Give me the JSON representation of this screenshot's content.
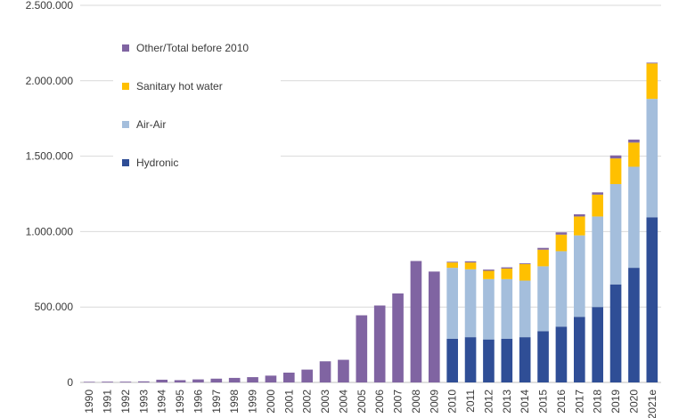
{
  "chart_data": {
    "type": "bar",
    "stacked": true,
    "grid": "horizontal",
    "legend_position": "top-left",
    "ylim": [
      0,
      2500000
    ],
    "yticks": [
      0,
      500000,
      1000000,
      1500000,
      2000000,
      2500000
    ],
    "ytick_labels": [
      "0",
      "500.000",
      "1.000.000",
      "1.500.000",
      "2.000.000",
      "2.500.000"
    ],
    "categories": [
      "1990",
      "1991",
      "1992",
      "1993",
      "1994",
      "1995",
      "1996",
      "1997",
      "1998",
      "1999",
      "2000",
      "2001",
      "2002",
      "2003",
      "2004",
      "2005",
      "2006",
      "2007",
      "2008",
      "2009",
      "2010",
      "2011",
      "2012",
      "2013",
      "2014",
      "2015",
      "2016",
      "2017",
      "2018",
      "2019",
      "2020",
      "2021e"
    ],
    "series": [
      {
        "name": "Hydronic",
        "color": "#2f4e96",
        "values": [
          0,
          0,
          0,
          0,
          0,
          0,
          0,
          0,
          0,
          0,
          0,
          0,
          0,
          0,
          0,
          0,
          0,
          0,
          0,
          0,
          290000,
          300000,
          285000,
          290000,
          300000,
          340000,
          370000,
          435000,
          500000,
          650000,
          760000,
          1095000
        ]
      },
      {
        "name": "Air-Air",
        "color": "#a4bedc",
        "values": [
          0,
          0,
          0,
          0,
          0,
          0,
          0,
          0,
          0,
          0,
          0,
          0,
          0,
          0,
          0,
          0,
          0,
          0,
          0,
          0,
          470000,
          450000,
          400000,
          395000,
          375000,
          430000,
          500000,
          540000,
          600000,
          665000,
          670000,
          785000
        ]
      },
      {
        "name": "Sanitary hot water",
        "color": "#ffc000",
        "values": [
          0,
          0,
          0,
          0,
          0,
          0,
          0,
          0,
          0,
          0,
          0,
          0,
          0,
          0,
          0,
          0,
          0,
          0,
          0,
          0,
          35000,
          45000,
          55000,
          70000,
          110000,
          110000,
          110000,
          125000,
          145000,
          170000,
          160000,
          235000
        ]
      },
      {
        "name": "Other/Total before 2010",
        "color": "#8064a2",
        "values": [
          4000,
          5000,
          5000,
          7000,
          18000,
          15000,
          20000,
          25000,
          30000,
          35000,
          45000,
          65000,
          85000,
          140000,
          150000,
          445000,
          510000,
          590000,
          805000,
          735000,
          5000,
          8000,
          8000,
          8000,
          5000,
          12000,
          15000,
          15000,
          15000,
          20000,
          20000,
          5000
        ]
      }
    ],
    "legend_order": [
      "Other/Total before 2010",
      "Sanitary hot water",
      "Air-Air",
      "Hydronic"
    ]
  }
}
